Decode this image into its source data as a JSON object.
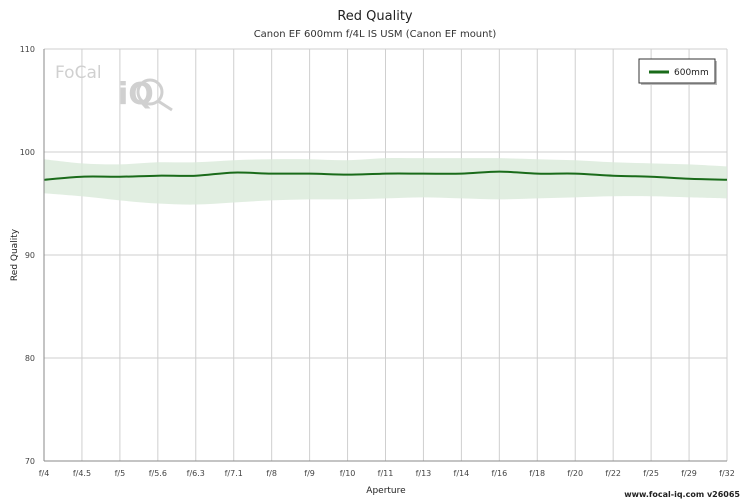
{
  "chart_data": {
    "type": "line",
    "title": "Red Quality",
    "subtitle": "Canon EF 600mm f/4L IS USM (Canon EF mount)",
    "xlabel": "Aperture",
    "ylabel": "Red Quality",
    "ylim": [
      70,
      110
    ],
    "yticks": [
      70,
      80,
      90,
      100,
      110
    ],
    "categories": [
      "f/4",
      "f/4.5",
      "f/5",
      "f/5.6",
      "f/6.3",
      "f/7.1",
      "f/8",
      "f/9",
      "f/10",
      "f/11",
      "f/13",
      "f/14",
      "f/16",
      "f/18",
      "f/20",
      "f/22",
      "f/25",
      "f/29",
      "f/32"
    ],
    "series": [
      {
        "name": "600mm",
        "color": "#1a6b1a",
        "values": [
          97.3,
          97.6,
          97.6,
          97.7,
          97.7,
          98.0,
          97.9,
          97.9,
          97.8,
          97.9,
          97.9,
          97.9,
          98.1,
          97.9,
          97.9,
          97.7,
          97.6,
          97.4,
          97.3
        ],
        "band_upper": [
          99.3,
          98.9,
          98.8,
          99.0,
          99.0,
          99.2,
          99.3,
          99.3,
          99.2,
          99.4,
          99.4,
          99.4,
          99.4,
          99.3,
          99.2,
          99.0,
          98.9,
          98.8,
          98.6
        ],
        "band_lower": [
          96.0,
          95.7,
          95.3,
          95.0,
          94.9,
          95.1,
          95.3,
          95.4,
          95.4,
          95.5,
          95.6,
          95.5,
          95.4,
          95.5,
          95.6,
          95.7,
          95.7,
          95.6,
          95.5
        ]
      }
    ],
    "band_color": "#d9ead9",
    "grid": true,
    "legend_position": "top-right"
  },
  "watermark": {
    "logo_text_focal": "FoCal",
    "logo_text_iq": "iQ"
  },
  "credit": "www.focal-iq.com  v26065"
}
